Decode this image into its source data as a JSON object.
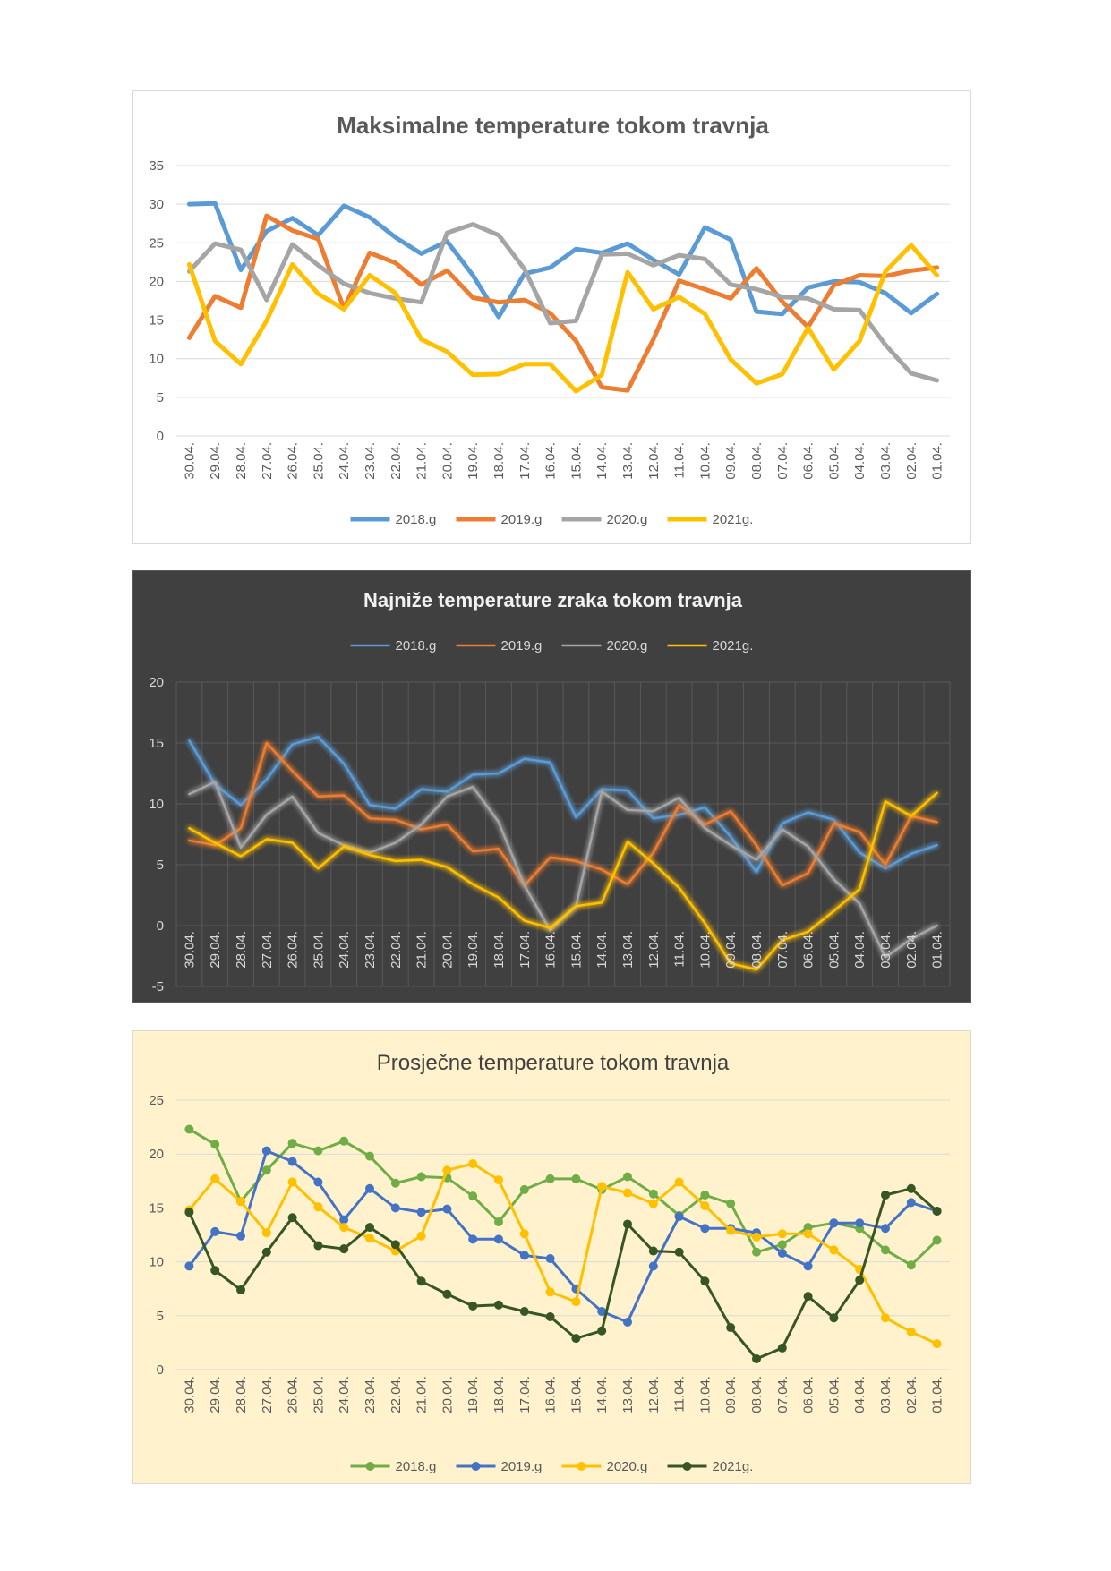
{
  "chart_data": [
    {
      "type": "line",
      "title": "Maksimalne temperature tokom travnja",
      "style": {
        "background": "#ffffff",
        "title_color": "#595959",
        "text_color": "#595959",
        "grid_color": "#d9d9d9",
        "title_bold": true,
        "line_width": 5,
        "markers": false,
        "glow": false,
        "legend_position": "bottom"
      },
      "ylim": [
        0,
        35
      ],
      "yticks": [
        0,
        5,
        10,
        15,
        20,
        25,
        30,
        35
      ],
      "categories": [
        "30.04.",
        "29.04.",
        "28.04.",
        "27.04.",
        "26.04.",
        "25.04.",
        "24.04.",
        "23.04.",
        "22.04.",
        "21.04.",
        "20.04.",
        "19.04.",
        "18.04.",
        "17.04.",
        "16.04.",
        "15.04.",
        "14.04.",
        "13.04.",
        "12.04.",
        "11.04.",
        "10.04.",
        "09.04.",
        "08.04.",
        "07.04.",
        "06.04.",
        "05.04.",
        "04.04.",
        "03.04.",
        "02.04.",
        "01.04."
      ],
      "series": [
        {
          "name": "2018.g",
          "color": "#5b9bd5",
          "values": [
            30.0,
            30.1,
            21.5,
            26.5,
            28.2,
            26.0,
            29.8,
            28.3,
            25.7,
            23.6,
            25.2,
            20.8,
            15.4,
            21.0,
            21.8,
            24.2,
            23.7,
            24.9,
            22.8,
            20.9,
            27.0,
            25.4,
            16.1,
            15.8,
            19.2,
            20.0,
            19.9,
            18.5,
            15.9,
            18.4
          ]
        },
        {
          "name": "2019.g",
          "color": "#ed7d31",
          "values": [
            12.7,
            18.1,
            16.6,
            28.5,
            26.6,
            25.5,
            16.5,
            23.7,
            22.4,
            19.6,
            21.4,
            17.9,
            17.3,
            17.6,
            15.9,
            12.3,
            6.3,
            5.9,
            12.5,
            20.1,
            19.0,
            17.8,
            21.7,
            17.4,
            14.1,
            19.5,
            20.8,
            20.7,
            21.4,
            21.8
          ]
        },
        {
          "name": "2020.g",
          "color": "#a5a5a5",
          "values": [
            21.3,
            24.9,
            24.1,
            17.6,
            24.8,
            22.1,
            19.7,
            18.5,
            17.8,
            17.3,
            26.3,
            27.4,
            26.0,
            21.6,
            14.6,
            14.9,
            23.5,
            23.6,
            22.1,
            23.4,
            22.9,
            19.6,
            19.0,
            18.0,
            17.8,
            16.4,
            16.3,
            11.8,
            8.1,
            7.2
          ]
        },
        {
          "name": "2021g.",
          "color": "#ffc000",
          "values": [
            22.2,
            12.3,
            9.3,
            14.9,
            22.2,
            18.4,
            16.4,
            20.8,
            18.5,
            12.5,
            10.9,
            7.9,
            8.0,
            9.3,
            9.3,
            5.8,
            7.9,
            21.2,
            16.4,
            18.0,
            15.8,
            9.9,
            6.8,
            8.0,
            14.0,
            8.6,
            12.3,
            21.3,
            24.7,
            20.8
          ]
        }
      ]
    },
    {
      "type": "line",
      "title": "Najniže temperature zraka tokom travnja",
      "style": {
        "background": "#404040",
        "title_color": "#f2f2f2",
        "text_color": "#d9d9d9",
        "grid_color": "#595959",
        "title_bold": true,
        "line_width": 2.5,
        "markers": false,
        "glow": true,
        "legend_position": "top"
      },
      "ylim": [
        -5,
        20
      ],
      "yticks": [
        -5,
        0,
        5,
        10,
        15,
        20
      ],
      "categories": [
        "30.04.",
        "29.04.",
        "28.04.",
        "27.04.",
        "26.04.",
        "25.04.",
        "24.04.",
        "23.04.",
        "22.04.",
        "21.04.",
        "20.04.",
        "19.04.",
        "18.04.",
        "17.04.",
        "16.04.",
        "15.04.",
        "14.04.",
        "13.04.",
        "12.04.",
        "11.04.",
        "10.04.",
        "09.04.",
        "08.04.",
        "07.04.",
        "06.04.",
        "05.04.",
        "04.04.",
        "03.04.",
        "02.04.",
        "01.04."
      ],
      "series": [
        {
          "name": "2018.g",
          "color": "#5b9bd5",
          "values": [
            15.2,
            11.6,
            9.9,
            12.0,
            14.9,
            15.5,
            13.3,
            9.9,
            9.6,
            11.2,
            11.0,
            12.4,
            12.5,
            13.7,
            13.4,
            8.9,
            11.2,
            11.1,
            8.8,
            9.1,
            9.7,
            7.3,
            4.4,
            8.4,
            9.3,
            8.7,
            6.0,
            4.7,
            5.9,
            6.6
          ]
        },
        {
          "name": "2019.g",
          "color": "#ed7d31",
          "values": [
            7.0,
            6.6,
            8.0,
            15.0,
            12.7,
            10.6,
            10.7,
            8.8,
            8.7,
            7.9,
            8.3,
            6.1,
            6.3,
            3.3,
            5.6,
            5.3,
            4.6,
            3.4,
            6.0,
            9.9,
            8.3,
            9.4,
            6.6,
            3.3,
            4.3,
            8.4,
            7.7,
            5.0,
            9.0,
            8.5
          ]
        },
        {
          "name": "2020.g",
          "color": "#a5a5a5",
          "values": [
            10.8,
            11.8,
            6.4,
            9.1,
            10.6,
            7.6,
            6.6,
            6.0,
            6.8,
            8.3,
            10.6,
            11.4,
            8.5,
            3.3,
            -0.4,
            1.6,
            11.0,
            9.5,
            9.4,
            10.5,
            8.0,
            6.6,
            5.4,
            7.9,
            6.5,
            3.8,
            1.8,
            -2.6,
            -1.1,
            0.0
          ]
        },
        {
          "name": "2021g.",
          "color": "#ffc000",
          "values": [
            8.0,
            6.8,
            5.7,
            7.1,
            6.8,
            4.7,
            6.5,
            5.8,
            5.3,
            5.4,
            4.8,
            3.4,
            2.3,
            0.4,
            -0.2,
            1.6,
            1.9,
            6.9,
            5.1,
            3.1,
            0.2,
            -3.1,
            -3.6,
            -1.2,
            -0.5,
            1.2,
            3.0,
            10.2,
            9.0,
            10.9
          ]
        }
      ]
    },
    {
      "type": "line",
      "title": "Prosječne temperature tokom travnja",
      "style": {
        "background": "#fff2cc",
        "title_color": "#404040",
        "text_color": "#595959",
        "grid_color": "#d9d9d9",
        "title_bold": false,
        "line_width": 3,
        "markers": true,
        "glow": false,
        "legend_position": "bottom"
      },
      "ylim": [
        0,
        25
      ],
      "yticks": [
        0,
        5,
        10,
        15,
        20,
        25
      ],
      "categories": [
        "30.04.",
        "29.04.",
        "28.04.",
        "27.04.",
        "26.04.",
        "25.04.",
        "24.04.",
        "23.04.",
        "22.04.",
        "21.04.",
        "20.04.",
        "19.04.",
        "18.04.",
        "17.04.",
        "16.04.",
        "15.04.",
        "14.04.",
        "13.04.",
        "12.04.",
        "11.04.",
        "10.04.",
        "09.04.",
        "08.04.",
        "07.04.",
        "06.04.",
        "05.04.",
        "04.04.",
        "03.04.",
        "02.04.",
        "01.04."
      ],
      "series": [
        {
          "name": "2018.g",
          "color": "#70ad47",
          "values": [
            22.3,
            20.9,
            15.6,
            18.5,
            21.0,
            20.3,
            21.2,
            19.8,
            17.3,
            17.9,
            17.8,
            16.1,
            13.7,
            16.7,
            17.7,
            17.7,
            16.7,
            17.9,
            16.3,
            14.3,
            16.2,
            15.4,
            10.9,
            11.6,
            13.2,
            13.6,
            13.1,
            11.1,
            9.7,
            12.0
          ]
        },
        {
          "name": "2019.g",
          "color": "#4472c4",
          "values": [
            9.6,
            12.8,
            12.4,
            20.3,
            19.3,
            17.4,
            13.9,
            16.8,
            15.0,
            14.6,
            14.9,
            12.1,
            12.1,
            10.6,
            10.3,
            7.5,
            5.4,
            4.4,
            9.6,
            14.2,
            13.1,
            13.1,
            12.7,
            10.8,
            9.6,
            13.6,
            13.6,
            13.1,
            15.5,
            14.7
          ]
        },
        {
          "name": "2020.g",
          "color": "#ffc000",
          "values": [
            14.8,
            17.7,
            15.6,
            12.7,
            17.4,
            15.1,
            13.2,
            12.2,
            11.0,
            12.4,
            18.5,
            19.1,
            17.6,
            12.6,
            7.2,
            6.3,
            17.0,
            16.4,
            15.4,
            17.4,
            15.2,
            12.9,
            12.3,
            12.6,
            12.6,
            11.1,
            9.3,
            4.8,
            3.5,
            2.4
          ]
        },
        {
          "name": "2021g.",
          "color": "#375623",
          "values": [
            14.6,
            9.2,
            7.4,
            10.9,
            14.1,
            11.5,
            11.2,
            13.2,
            11.6,
            8.2,
            7.0,
            5.9,
            6.0,
            5.4,
            4.9,
            2.9,
            3.6,
            13.5,
            11.0,
            10.9,
            8.2,
            3.9,
            1.0,
            2.0,
            6.8,
            4.8,
            8.3,
            16.2,
            16.8,
            14.7
          ]
        }
      ]
    }
  ]
}
